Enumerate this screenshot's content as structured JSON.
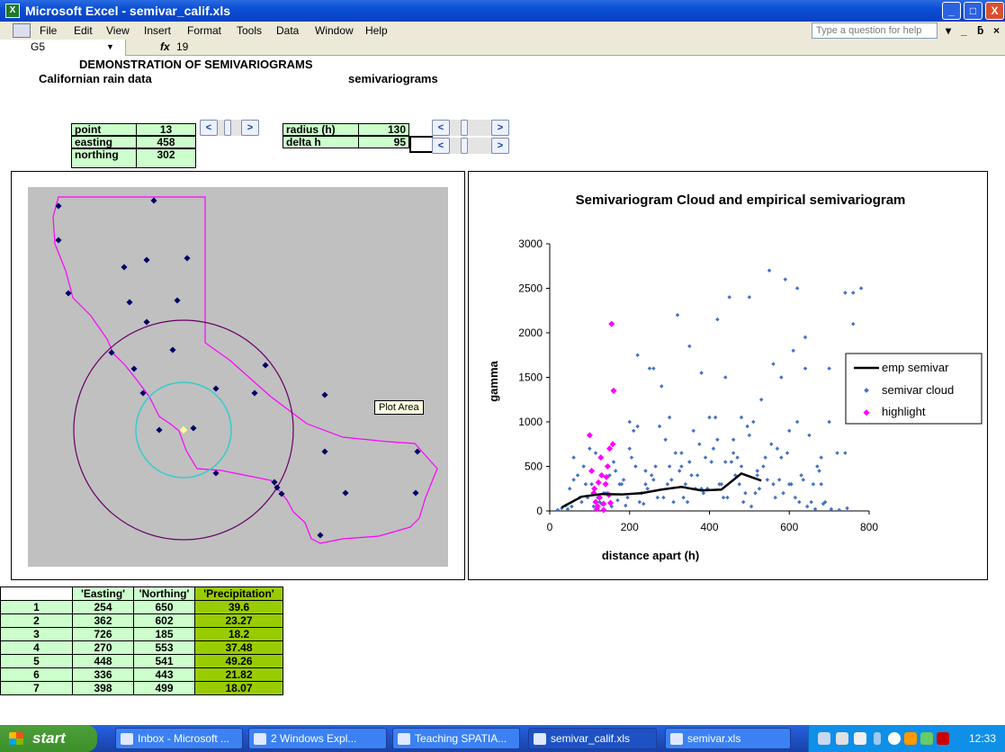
{
  "window": {
    "title": "Microsoft Excel - semivar_calif.xls",
    "app_icon_label": "X",
    "controls": {
      "minimize": "_",
      "maximize": "□",
      "close": "X"
    }
  },
  "menu": {
    "items": [
      "File",
      "Edit",
      "View",
      "Insert",
      "Format",
      "Tools",
      "Data",
      "Window",
      "Help"
    ],
    "help_placeholder": "Type a question for help",
    "doc_controls": [
      "▾",
      "_",
      "ƃ",
      "×"
    ]
  },
  "formula_bar": {
    "name_box": "G5",
    "fx": "fx",
    "value": "19"
  },
  "sheet": {
    "title": "DEMONSTRATION OF SEMIVARIOGRAMS",
    "subtitle_left": "Californian rain data",
    "subtitle_right": "semivariograms",
    "point_table": [
      {
        "label": "point",
        "value": "13"
      },
      {
        "label": "easting",
        "value": "458"
      },
      {
        "label": "northing",
        "value": "302"
      }
    ],
    "param_table": [
      {
        "label": "radius (h)",
        "value": "130"
      },
      {
        "label": "delta h",
        "value": "95"
      }
    ],
    "scroll_left": "<",
    "scroll_right": ">"
  },
  "map": {
    "tooltip": "Plot Area",
    "stations": [
      [
        64,
        228
      ],
      [
        170,
        222
      ],
      [
        64,
        266
      ],
      [
        137,
        296
      ],
      [
        162,
        288
      ],
      [
        207,
        286
      ],
      [
        75,
        325
      ],
      [
        143,
        335
      ],
      [
        196,
        333
      ],
      [
        162,
        357
      ],
      [
        191,
        388
      ],
      [
        123,
        391
      ],
      [
        148,
        409
      ],
      [
        294,
        405
      ],
      [
        158,
        436
      ],
      [
        239,
        431
      ],
      [
        282,
        436
      ],
      [
        360,
        438
      ],
      [
        176,
        477
      ],
      [
        214,
        475
      ],
      [
        463,
        501
      ],
      [
        360,
        501
      ],
      [
        239,
        525
      ],
      [
        304,
        535
      ],
      [
        307,
        541
      ],
      [
        312,
        548
      ],
      [
        383,
        547
      ],
      [
        461,
        547
      ],
      [
        355,
        594
      ]
    ],
    "selected": [
      203,
      477
    ],
    "colors": {
      "background": "#c0c0c0",
      "outline": "#ff00ff",
      "station": "#000066",
      "outer_circle": "#660066",
      "inner_circle": "#33cccc",
      "selected": "#ffff99"
    }
  },
  "chart_data": {
    "type": "scatter",
    "title": "Semivariogram Cloud and empirical semivariogram",
    "xlabel": "distance apart (h)",
    "ylabel": "gamma",
    "xlim": [
      0,
      800
    ],
    "ylim": [
      0,
      3000
    ],
    "xticks": [
      "0",
      "200",
      "400",
      "600",
      "800"
    ],
    "yticks": [
      "0",
      "500",
      "1000",
      "1500",
      "2000",
      "2500",
      "3000"
    ],
    "legend_position": "right",
    "series": [
      {
        "name": "emp semivar",
        "type": "line",
        "color": "#000000",
        "x": [
          30,
          80,
          130,
          180,
          230,
          280,
          330,
          380,
          430,
          480,
          530
        ],
        "y": [
          40,
          160,
          190,
          185,
          200,
          240,
          270,
          230,
          240,
          420,
          340
        ]
      },
      {
        "name": "semivar cloud",
        "type": "scatter",
        "color": "#4472c4",
        "x": [
          20,
          30,
          40,
          45,
          50,
          60,
          70,
          80,
          90,
          100,
          110,
          120,
          130,
          140,
          150,
          160,
          170,
          180,
          190,
          200,
          210,
          220,
          230,
          240,
          250,
          260,
          270,
          280,
          290,
          300,
          310,
          320,
          330,
          340,
          350,
          360,
          370,
          380,
          390,
          400,
          410,
          420,
          430,
          440,
          450,
          460,
          470,
          480,
          490,
          500,
          510,
          520,
          530,
          540,
          550,
          560,
          570,
          580,
          590,
          600,
          610,
          620,
          630,
          640,
          650,
          660,
          670,
          680,
          690,
          700,
          720,
          740,
          760,
          780,
          60,
          85,
          95,
          115,
          135,
          155,
          175,
          195,
          215,
          235,
          255,
          275,
          295,
          315,
          335,
          355,
          375,
          395,
          415,
          435,
          455,
          475,
          495,
          515,
          535,
          555,
          575,
          595,
          615,
          635,
          655,
          675,
          55,
          75,
          105,
          125,
          145,
          165,
          185,
          205,
          225,
          245,
          265,
          285,
          305,
          325,
          345,
          365,
          385,
          405,
          425,
          445,
          465,
          485,
          505,
          525,
          545,
          565,
          585,
          605,
          625,
          645,
          665,
          685,
          705,
          725,
          745,
          150,
          220,
          300,
          350,
          420,
          480,
          560,
          620,
          700,
          760,
          240,
          330,
          460,
          520,
          600,
          640,
          200,
          260,
          380,
          440,
          500,
          580,
          680,
          740
        ],
        "y": [
          10,
          30,
          60,
          20,
          250,
          600,
          400,
          100,
          300,
          700,
          50,
          150,
          80,
          200,
          400,
          550,
          120,
          300,
          60,
          700,
          900,
          1750,
          200,
          450,
          1600,
          350,
          150,
          1400,
          800,
          500,
          100,
          2200,
          650,
          300,
          1850,
          900,
          400,
          250,
          600,
          1050,
          700,
          2150,
          300,
          1500,
          2400,
          800,
          600,
          1050,
          200,
          2400,
          1000,
          450,
          1250,
          600,
          2700,
          300,
          700,
          1500,
          2600,
          900,
          1800,
          2500,
          400,
          1950,
          850,
          300,
          500,
          600,
          100,
          1600,
          650,
          2450,
          2100,
          2500,
          350,
          500,
          150,
          650,
          200,
          50,
          300,
          150,
          500,
          80,
          400,
          950,
          300,
          650,
          150,
          400,
          750,
          250,
          1050,
          150,
          550,
          300,
          950,
          200,
          500,
          750,
          350,
          650,
          150,
          350,
          100,
          450,
          50,
          150,
          300,
          100,
          200,
          450,
          350,
          600,
          100,
          250,
          500,
          150,
          350,
          450,
          100,
          250,
          200,
          550,
          300,
          150,
          400,
          100,
          50,
          250,
          350,
          150,
          200,
          300,
          100,
          50,
          20,
          80,
          20,
          10,
          30,
          700,
          950,
          1050,
          550,
          800,
          500,
          1650,
          1000,
          1000,
          2450,
          300,
          500,
          650,
          400,
          300,
          1600,
          1000,
          1600,
          1550,
          550,
          850,
          600,
          300,
          650
        ]
      },
      {
        "name": "highlight",
        "type": "scatter",
        "color": "#ff00ff",
        "x": [
          100,
          105,
          110,
          115,
          120,
          125,
          130,
          135,
          140,
          145,
          150,
          155,
          160,
          112,
          128,
          142,
          158,
          118,
          148,
          135,
          152,
          122
        ],
        "y": [
          850,
          450,
          200,
          100,
          50,
          150,
          400,
          80,
          300,
          500,
          700,
          2100,
          1350,
          250,
          600,
          380,
          750,
          20,
          180,
          10,
          90,
          320
        ]
      }
    ]
  },
  "data_table": {
    "headers": [
      "",
      "'Easting'",
      "'Northing'",
      "'Precipitation'"
    ],
    "rows": [
      [
        "1",
        "254",
        "650",
        "39.6"
      ],
      [
        "2",
        "362",
        "602",
        "23.27"
      ],
      [
        "3",
        "726",
        "185",
        "18.2"
      ],
      [
        "4",
        "270",
        "553",
        "37.48"
      ],
      [
        "5",
        "448",
        "541",
        "49.26"
      ],
      [
        "6",
        "336",
        "443",
        "21.82"
      ],
      [
        "7",
        "398",
        "499",
        "18.07"
      ]
    ]
  },
  "taskbar": {
    "start": "start",
    "tasks": [
      {
        "label": "Inbox - Microsoft ...",
        "active": false
      },
      {
        "label": "2 Windows Expl...",
        "active": false
      },
      {
        "label": "Teaching SPATIA...",
        "active": false
      },
      {
        "label": "semivar_calif.xls",
        "active": true
      },
      {
        "label": "semivar.xls",
        "active": false
      }
    ],
    "clock": "12:33"
  }
}
